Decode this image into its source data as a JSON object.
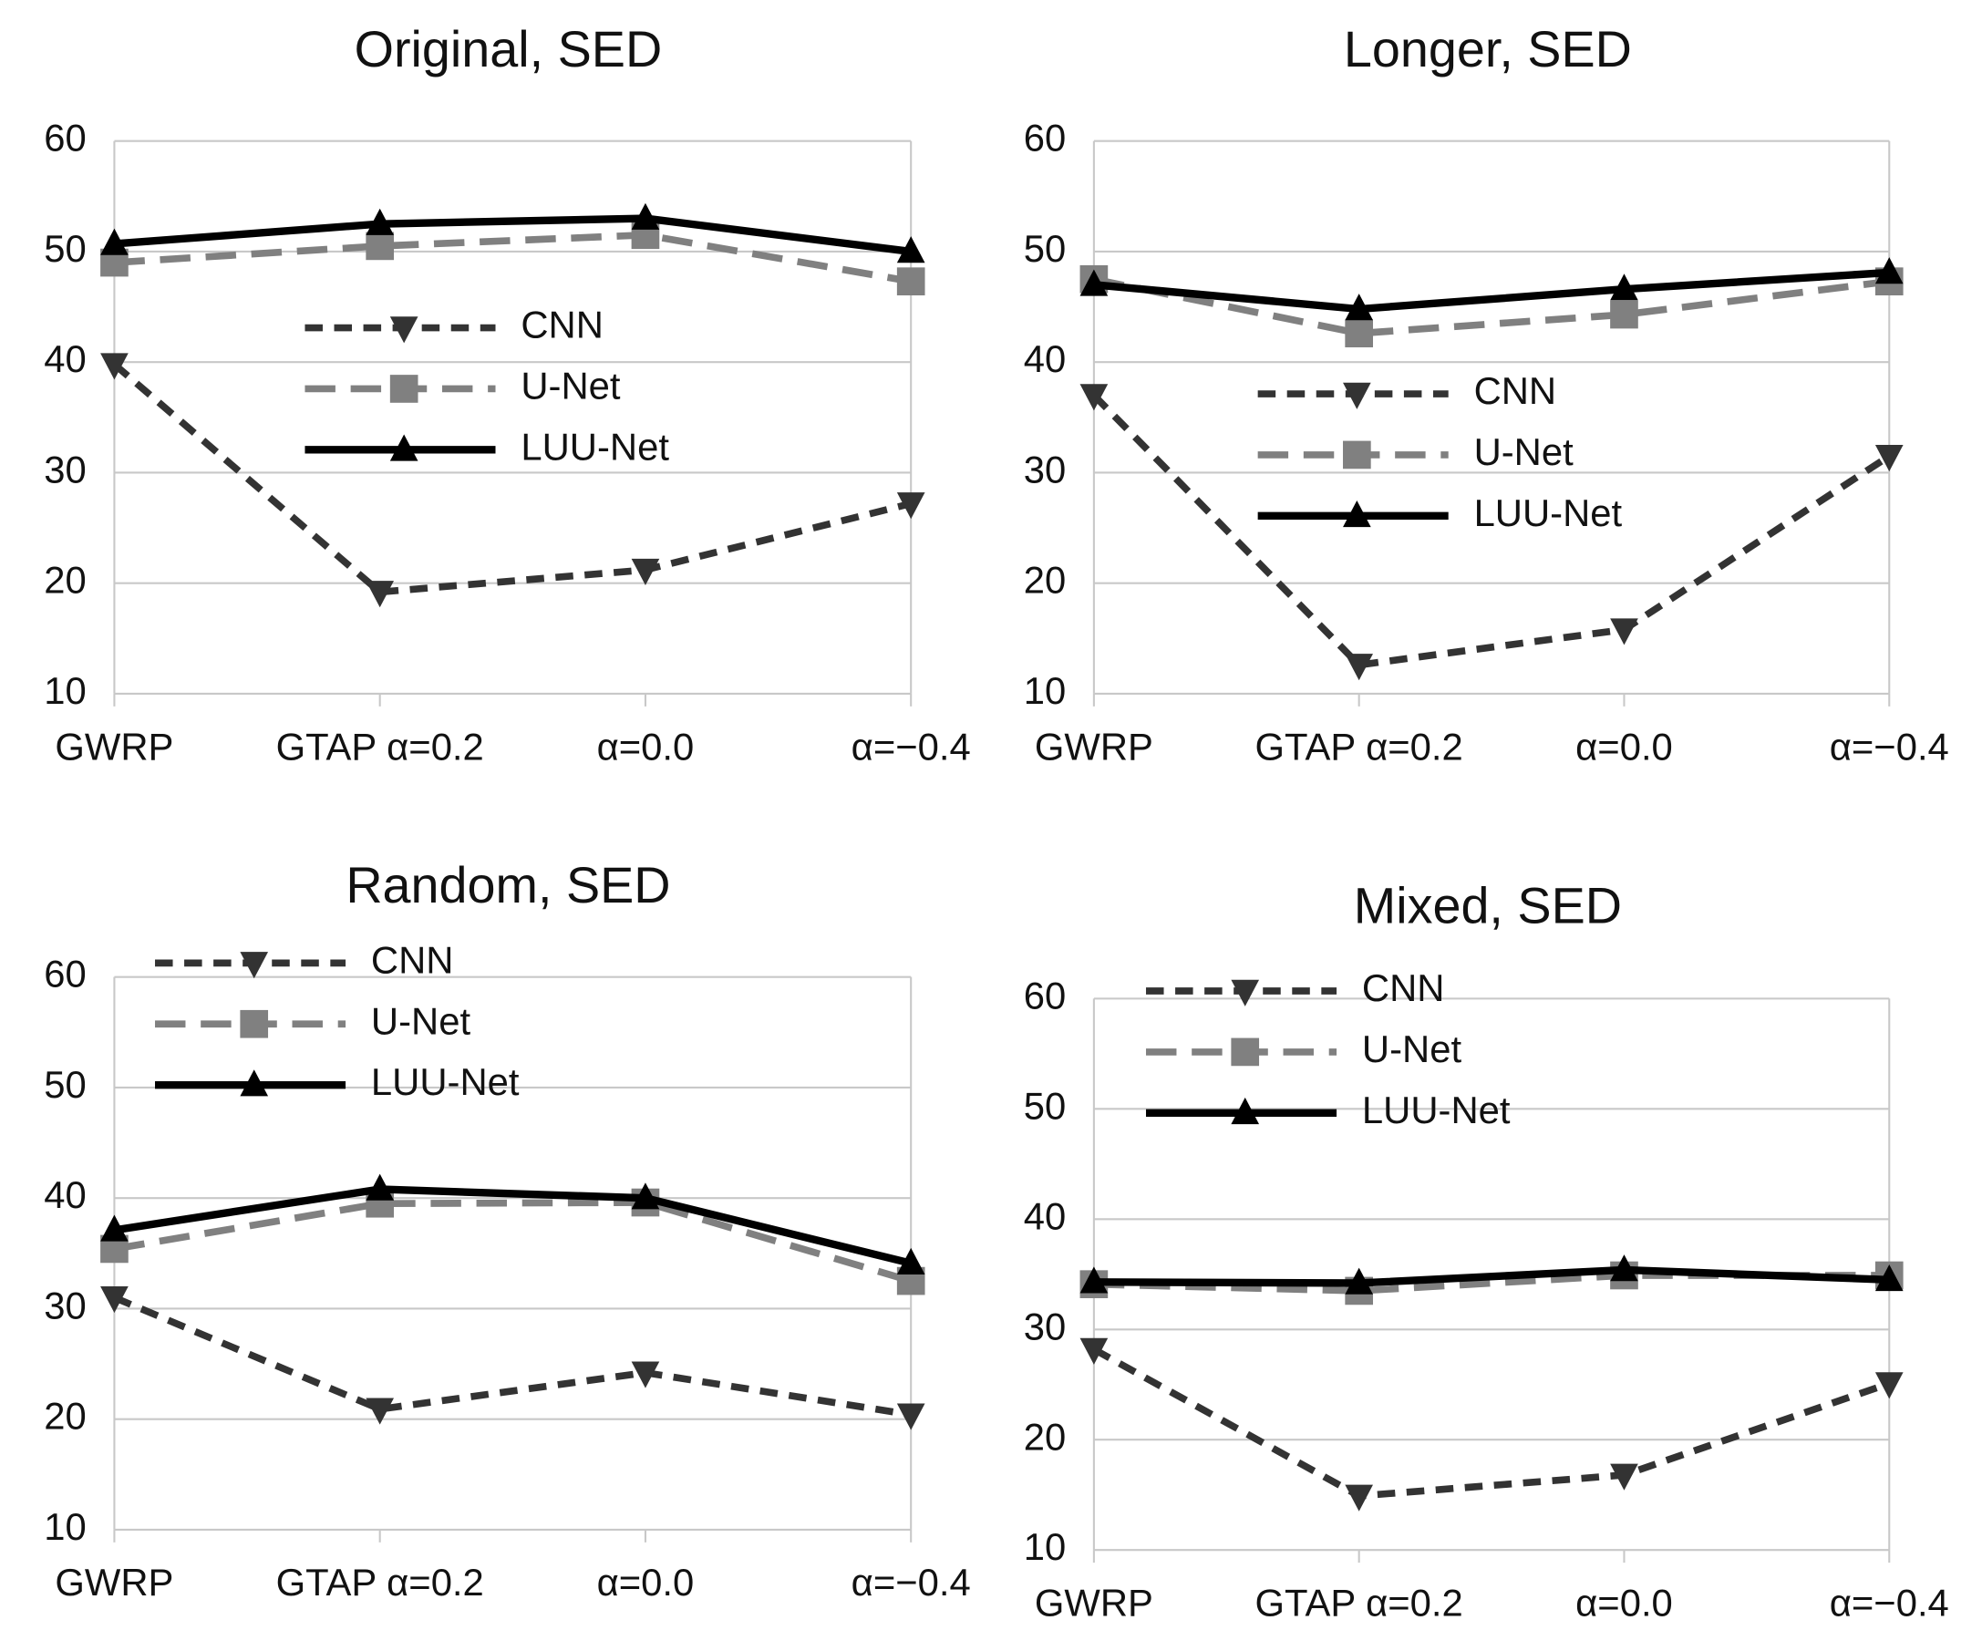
{
  "chart_data": [
    {
      "type": "line",
      "title": "Original, SED",
      "categories": [
        "GWRP",
        "GTAP α=0.2",
        "α=0.0",
        "α=−0.4"
      ],
      "ylim": [
        10,
        60
      ],
      "yticks": [
        10,
        20,
        30,
        40,
        50,
        60
      ],
      "grid": true,
      "series": [
        {
          "name": "CNN",
          "color": "#333333",
          "values": [
            39.8,
            19.2,
            21.2,
            27.2
          ]
        },
        {
          "name": "U-Net",
          "color": "#808080",
          "values": [
            49,
            50.5,
            51.5,
            47.3
          ]
        },
        {
          "name": "LUU-Net",
          "color": "#000000",
          "values": [
            50.7,
            52.5,
            53,
            50
          ]
        }
      ]
    },
    {
      "type": "line",
      "title": "Longer, SED",
      "categories": [
        "GWRP",
        "GTAP α=0.2",
        "α=0.0",
        "α=−0.4"
      ],
      "ylim": [
        10,
        60
      ],
      "yticks": [
        10,
        20,
        30,
        40,
        50,
        60
      ],
      "grid": true,
      "series": [
        {
          "name": "CNN",
          "color": "#333333",
          "values": [
            37,
            12.6,
            15.8,
            31.5
          ]
        },
        {
          "name": "U-Net",
          "color": "#808080",
          "values": [
            47.5,
            42.6,
            44.3,
            47.3
          ]
        },
        {
          "name": "LUU-Net",
          "color": "#000000",
          "values": [
            47,
            44.8,
            46.6,
            48.1
          ]
        }
      ]
    },
    {
      "type": "line",
      "title": "Random, SED",
      "categories": [
        "GWRP",
        "GTAP α=0.2",
        "α=0.0",
        "α=−0.4"
      ],
      "ylim": [
        10,
        60
      ],
      "yticks": [
        10,
        20,
        30,
        40,
        50,
        60
      ],
      "grid": true,
      "series": [
        {
          "name": "CNN",
          "color": "#333333",
          "values": [
            31,
            20.9,
            24.2,
            20.4
          ]
        },
        {
          "name": "U-Net",
          "color": "#808080",
          "values": [
            35.4,
            39.5,
            39.6,
            32.5
          ]
        },
        {
          "name": "LUU-Net",
          "color": "#000000",
          "values": [
            37.1,
            40.8,
            40,
            34.1
          ]
        }
      ]
    },
    {
      "type": "line",
      "title": "Mixed, SED",
      "categories": [
        "GWRP",
        "GTAP α=0.2",
        "α=0.0",
        "α=−0.4"
      ],
      "ylim": [
        10,
        60
      ],
      "yticks": [
        10,
        20,
        30,
        40,
        50,
        60
      ],
      "grid": true,
      "series": [
        {
          "name": "CNN",
          "color": "#333333",
          "values": [
            28.2,
            14.9,
            16.8,
            25.1
          ]
        },
        {
          "name": "U-Net",
          "color": "#808080",
          "values": [
            34.1,
            33.5,
            34.9,
            34.9
          ]
        },
        {
          "name": "LUU-Net",
          "color": "#000000",
          "values": [
            34.3,
            34.2,
            35.4,
            34.5
          ]
        }
      ]
    }
  ]
}
